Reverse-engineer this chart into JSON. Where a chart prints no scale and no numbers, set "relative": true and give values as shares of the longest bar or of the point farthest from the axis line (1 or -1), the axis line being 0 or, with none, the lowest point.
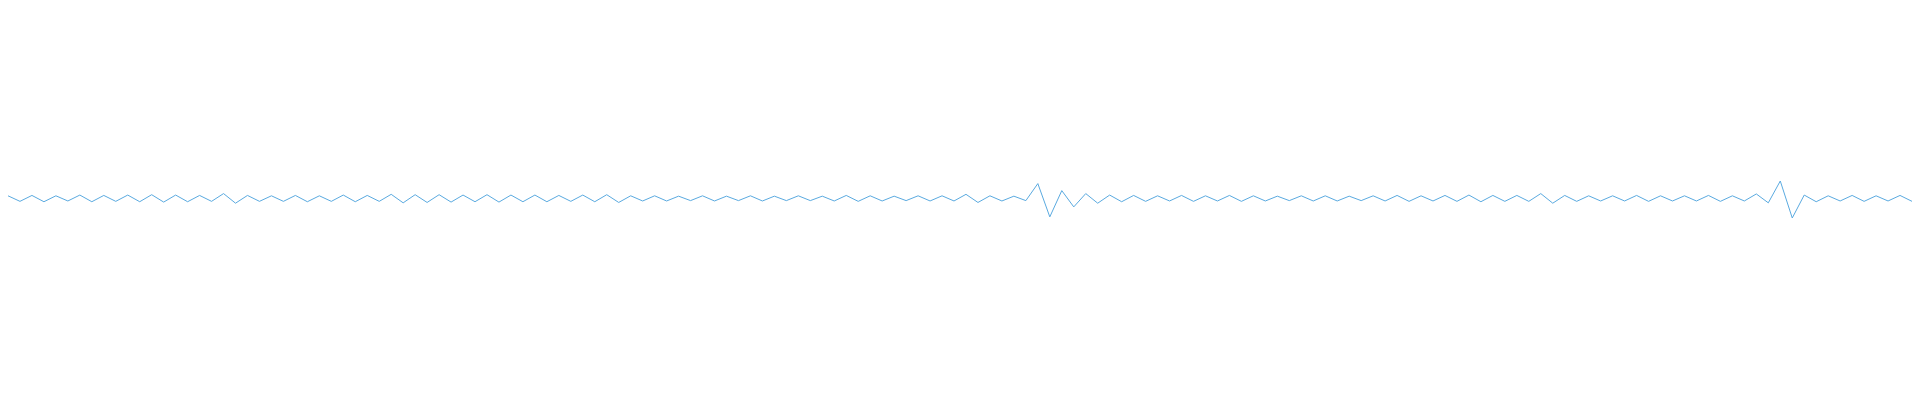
{
  "chart_data": {
    "type": "line",
    "relative": true,
    "color": "#5aaae0",
    "categories": [
      null,
      null,
      null,
      null,
      null,
      null,
      null,
      null,
      null,
      null,
      null,
      null,
      null,
      null,
      null,
      null,
      null,
      null,
      null,
      null,
      null,
      null,
      null,
      null,
      null,
      null,
      null,
      null,
      null,
      null,
      null,
      null,
      null,
      null,
      null,
      null,
      null,
      null,
      null,
      null,
      null,
      null,
      null,
      null,
      null,
      null,
      null,
      null,
      null,
      null,
      null,
      null,
      null,
      null,
      null,
      null,
      null,
      null,
      null,
      null,
      null,
      null,
      null,
      null,
      null,
      null,
      null,
      null,
      null,
      null,
      null,
      null,
      null,
      null,
      null,
      null,
      null,
      null,
      null,
      null,
      null,
      null,
      null,
      null,
      null,
      null,
      null,
      null,
      null,
      null,
      null,
      null,
      null,
      null,
      null,
      null,
      null,
      null,
      null,
      null,
      null,
      null,
      null,
      null,
      null,
      null,
      null,
      null,
      null,
      null,
      null,
      null,
      null,
      null,
      null,
      null,
      null,
      null,
      null,
      null,
      null,
      null,
      null,
      null,
      null,
      null,
      null,
      null,
      null,
      null,
      null,
      null,
      null,
      null,
      null,
      null,
      null,
      null,
      null,
      null,
      null,
      null,
      null,
      null,
      null,
      null,
      null,
      null,
      null,
      null,
      null,
      null,
      null,
      null,
      null,
      null,
      null,
      null,
      null,
      null
    ],
    "values": [
      0.6,
      0.45,
      0.61,
      0.44,
      0.6,
      0.46,
      0.62,
      0.44,
      0.61,
      0.45,
      0.62,
      0.44,
      0.63,
      0.43,
      0.62,
      0.44,
      0.61,
      0.45,
      0.66,
      0.4,
      0.61,
      0.45,
      0.6,
      0.45,
      0.61,
      0.44,
      0.6,
      0.45,
      0.62,
      0.44,
      0.61,
      0.45,
      0.64,
      0.41,
      0.63,
      0.42,
      0.63,
      0.43,
      0.62,
      0.44,
      0.63,
      0.43,
      0.62,
      0.44,
      0.62,
      0.44,
      0.61,
      0.45,
      0.62,
      0.44,
      0.63,
      0.42,
      0.6,
      0.46,
      0.6,
      0.46,
      0.59,
      0.47,
      0.6,
      0.46,
      0.59,
      0.47,
      0.6,
      0.46,
      0.59,
      0.47,
      0.6,
      0.47,
      0.59,
      0.46,
      0.61,
      0.45,
      0.6,
      0.46,
      0.59,
      0.47,
      0.6,
      0.46,
      0.6,
      0.46,
      0.64,
      0.42,
      0.6,
      0.46,
      0.59,
      0.47,
      0.93,
      0.03,
      0.74,
      0.3,
      0.66,
      0.4,
      0.62,
      0.44,
      0.61,
      0.45,
      0.6,
      0.46,
      0.61,
      0.45,
      0.6,
      0.46,
      0.61,
      0.45,
      0.6,
      0.46,
      0.59,
      0.47,
      0.6,
      0.46,
      0.6,
      0.46,
      0.59,
      0.47,
      0.6,
      0.46,
      0.61,
      0.45,
      0.6,
      0.46,
      0.61,
      0.45,
      0.62,
      0.44,
      0.61,
      0.45,
      0.61,
      0.45,
      0.66,
      0.4,
      0.61,
      0.45,
      0.6,
      0.46,
      0.6,
      0.46,
      0.61,
      0.45,
      0.6,
      0.46,
      0.6,
      0.46,
      0.61,
      0.45,
      0.6,
      0.46,
      0.65,
      0.41,
      1,
      0,
      0.62,
      0.44,
      0.6,
      0.46,
      0.61,
      0.45,
      0.6,
      0.46,
      0.61,
      0.45
    ]
  }
}
